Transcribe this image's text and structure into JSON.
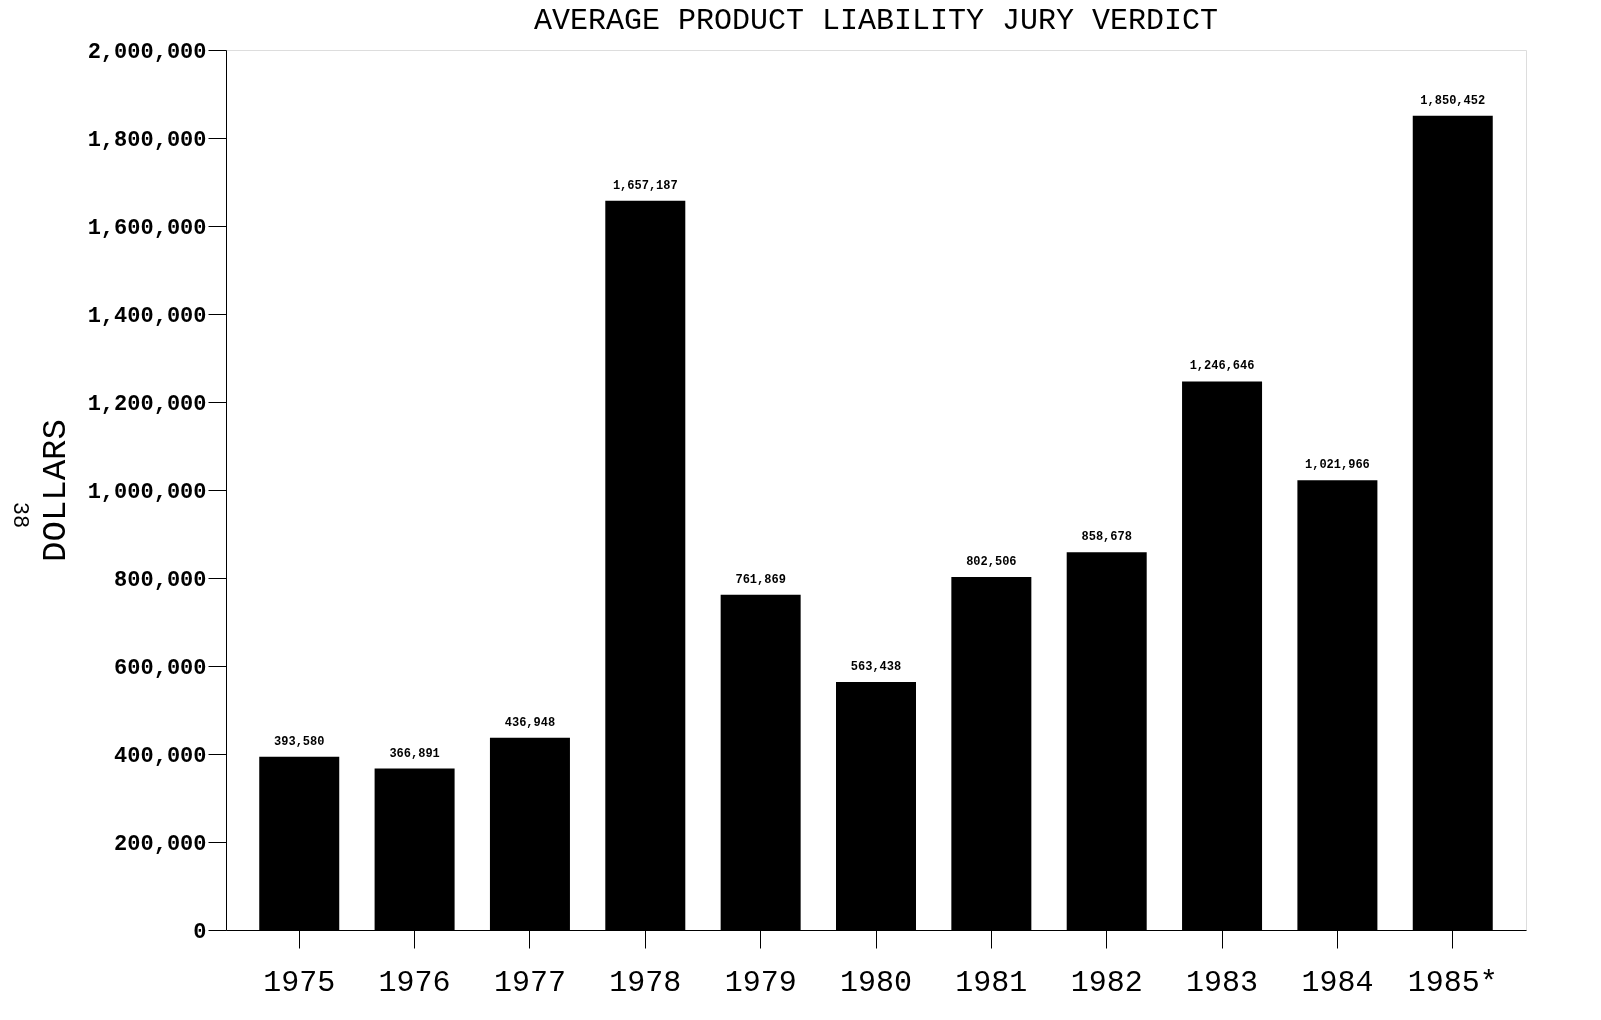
{
  "chart_data": {
    "type": "bar",
    "title": "AVERAGE PRODUCT LIABILITY JURY VERDICT",
    "ylabel": "DOLLARS",
    "categories": [
      "1975",
      "1976",
      "1977",
      "1978",
      "1979",
      "1980",
      "1981",
      "1982",
      "1983",
      "1984",
      "1985*"
    ],
    "values": [
      393580,
      366891,
      436948,
      1657187,
      761869,
      563438,
      802506,
      858678,
      1246646,
      1021966,
      1850452
    ],
    "value_labels": [
      "393,580",
      "366,891",
      "436,948",
      "1,657,187",
      "761,869",
      "563,438",
      "802,506",
      "858,678",
      "1,246,646",
      "1,021,966",
      "1,850,452"
    ],
    "color": "#000000",
    "ylim": [
      0,
      2000000
    ],
    "yticks": [
      0,
      {
        "value": 200000,
        "label": "200,000"
      },
      {
        "value": 400000,
        "label": "400,000"
      },
      {
        "value": 600000,
        "label": "600,000"
      },
      {
        "value": 800000,
        "label": "800,000"
      },
      {
        "value": 1000000,
        "label": "1,000,000"
      },
      {
        "value": 1200000,
        "label": "1,200,000"
      },
      {
        "value": 1400000,
        "label": "1,400,000"
      },
      {
        "value": 1600000,
        "label": "1,600,000"
      },
      {
        "value": 1800000,
        "label": "1,800,000"
      },
      {
        "value": 2000000,
        "label": "2,000,000"
      }
    ],
    "grid": false,
    "annotations": [
      "38"
    ]
  }
}
